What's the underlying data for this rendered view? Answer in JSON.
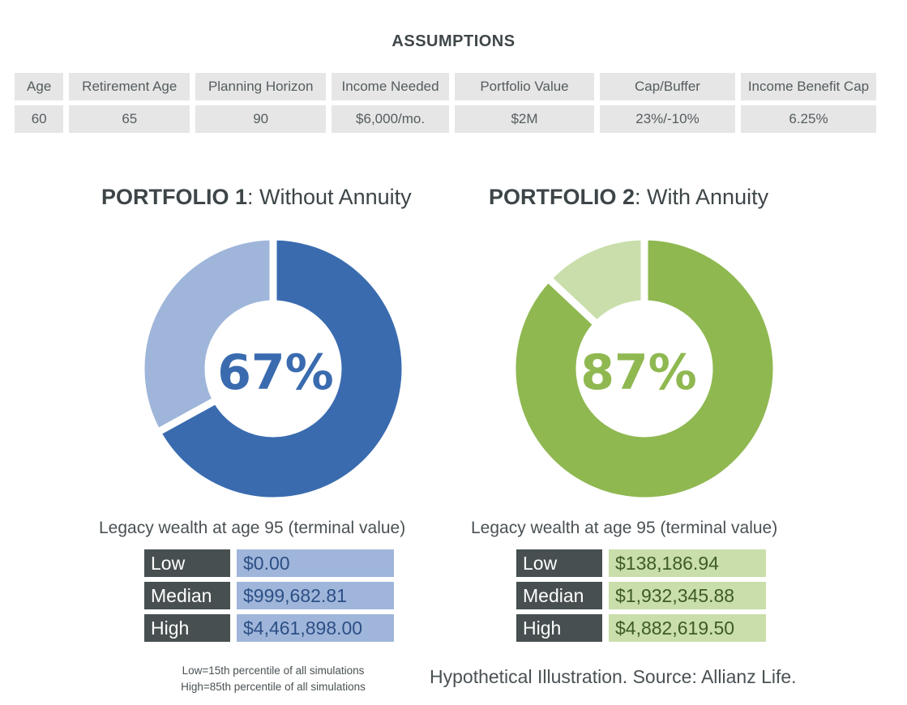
{
  "assumptions": {
    "title": "ASSUMPTIONS",
    "headers": [
      "Age",
      "Retirement Age",
      "Planning Horizon",
      "Income Needed",
      "Portfolio Value",
      "Cap/Buffer",
      "Income Benefit Cap"
    ],
    "values": [
      "60",
      "65",
      "90",
      "$6,000/mo.",
      "$2M",
      "23%/-10%",
      "6.25%"
    ]
  },
  "portfolios": [
    {
      "title_bold": "PORTFOLIO 1",
      "title_rest": ": Without Annuity",
      "success_label": "67%",
      "legacy_title": "Legacy wealth at age 95 (terminal value)",
      "rows": [
        {
          "label": "Low",
          "value": "$0.00"
        },
        {
          "label": "Median",
          "value": "$999,682.81"
        },
        {
          "label": "High",
          "value": "$4,461,898.00"
        }
      ]
    },
    {
      "title_bold": "PORTFOLIO 2",
      "title_rest": ": With Annuity",
      "success_label": "87%",
      "legacy_title": "Legacy wealth at age 95 (terminal value)",
      "rows": [
        {
          "label": "Low",
          "value": "$138,186.94"
        },
        {
          "label": "Median",
          "value": "$1,932,345.88"
        },
        {
          "label": "High",
          "value": "$4,882,619.50"
        }
      ]
    }
  ],
  "footnote": {
    "line1": "Low=15th percentile of all simulations",
    "line2": "High=85th percentile of all simulations"
  },
  "source": "Hypothetical Illustration. Source: Allianz Life.",
  "chart_data": [
    {
      "type": "pie",
      "labels": [
        "",
        ""
      ],
      "values": [
        67,
        33
      ],
      "colors": [
        "#3a6baf",
        "#9fb6da"
      ],
      "center_label": "67%",
      "title": "PORTFOLIO 1: Without Annuity"
    },
    {
      "type": "pie",
      "labels": [
        "",
        ""
      ],
      "values": [
        87,
        13
      ],
      "colors": [
        "#8fb851",
        "#c9deaa"
      ],
      "center_label": "87%",
      "title": "PORTFOLIO 2: With Annuity"
    }
  ]
}
